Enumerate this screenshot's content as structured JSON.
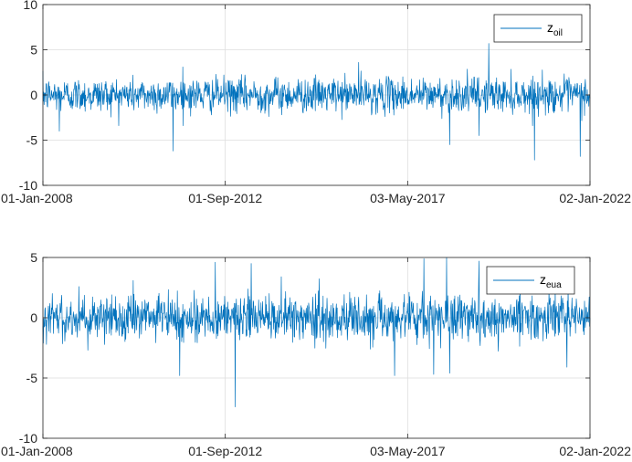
{
  "chart_data": [
    {
      "type": "line",
      "x_ticks": [
        "01-Jan-2008",
        "01-Sep-2012",
        "03-May-2017",
        "02-Jan-2022"
      ],
      "xlim": [
        "01-Jan-2008",
        "02-Jan-2022"
      ],
      "ylim": [
        -10,
        10
      ],
      "y_ticks": [
        10,
        5,
        0,
        -5,
        -10
      ],
      "grid": true,
      "legend_position": "top-right",
      "color": "#0072BD",
      "series": [
        {
          "name": "z",
          "name_subscript": "oil",
          "description_stats": {
            "center": 0,
            "typical_range": [
              -3,
              3
            ]
          },
          "spikes": [
            {
              "date": "01-May-2011",
              "value": -6.2
            },
            {
              "date": "01-Feb-2016",
              "value": 3.6
            },
            {
              "date": "01-Jun-2018",
              "value": -5.5
            },
            {
              "date": "01-Jun-2019",
              "value": 5.7
            },
            {
              "date": "01-Mar-2019",
              "value": -4.5
            },
            {
              "date": "01-Aug-2020",
              "value": -7.2
            },
            {
              "date": "01-Oct-2021",
              "value": -6.8
            },
            {
              "date": "01-Aug-2011",
              "value": 3.1
            },
            {
              "date": "01-Jun-2008",
              "value": -4.0
            }
          ]
        }
      ]
    },
    {
      "type": "line",
      "x_ticks": [
        "01-Jan-2008",
        "01-Sep-2012",
        "03-May-2017",
        "02-Jan-2022"
      ],
      "xlim": [
        "01-Jan-2008",
        "02-Jan-2022"
      ],
      "ylim": [
        -10,
        5
      ],
      "y_ticks": [
        5,
        0,
        -5,
        -10
      ],
      "grid": true,
      "legend_position": "top-right",
      "color": "#0072BD",
      "series": [
        {
          "name": "z",
          "name_subscript": "eua",
          "description_stats": {
            "center": 0,
            "typical_range": [
              -3,
              3
            ]
          },
          "spikes": [
            {
              "date": "01-Dec-2012",
              "value": -7.4
            },
            {
              "date": "01-Jul-2011",
              "value": -4.8
            },
            {
              "date": "01-Jun-2012",
              "value": 4.6
            },
            {
              "date": "01-May-2013",
              "value": 4.5
            },
            {
              "date": "01-Jan-2017",
              "value": -4.8
            },
            {
              "date": "01-Oct-2017",
              "value": 4.9
            },
            {
              "date": "01-May-2018",
              "value": 5.0
            },
            {
              "date": "01-Jun-2018",
              "value": -4.6
            },
            {
              "date": "01-Jan-2018",
              "value": -4.7
            },
            {
              "date": "01-Mar-2019",
              "value": 4.7
            },
            {
              "date": "01-Jun-2021",
              "value": -4.1
            }
          ]
        }
      ]
    }
  ]
}
